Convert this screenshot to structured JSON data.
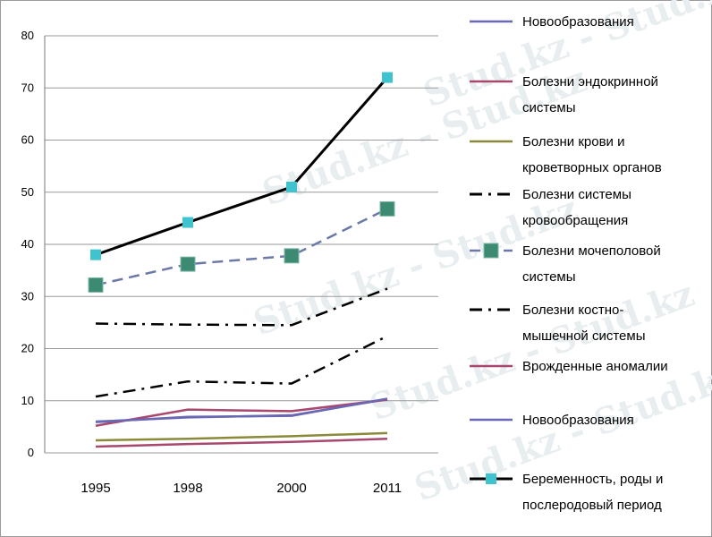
{
  "chart_data": {
    "type": "line",
    "x": [
      "1995",
      "1998",
      "2000",
      "2011"
    ],
    "ylim": [
      0,
      80
    ],
    "yticks": [
      "0",
      "10",
      "20",
      "30",
      "40",
      "50",
      "60",
      "70",
      "80"
    ],
    "grid": true,
    "legend_position": "right",
    "series": [
      {
        "name": "Новообразования",
        "values": [
          6,
          6.8,
          7.2,
          10.3
        ],
        "color": "#6a68b4",
        "style": "solid",
        "marker": "none"
      },
      {
        "name": "Болезни эндокринной системы",
        "values": [
          5.2,
          8.3,
          8,
          10.2
        ],
        "color": "#a8486e",
        "style": "solid",
        "marker": "none"
      },
      {
        "name": "Болезни крови и кроветворных органов",
        "values": [
          2.4,
          2.7,
          3.2,
          3.8
        ],
        "color": "#8a8a3a",
        "style": "solid",
        "marker": "none"
      },
      {
        "name": "Болезни системы кровообращения",
        "values": [
          24.8,
          24.6,
          24.5,
          31.5
        ],
        "color": "#000000",
        "style": "dashdot",
        "marker": "none"
      },
      {
        "name": "Болезни мочеполовой системы",
        "values": [
          32.2,
          36.2,
          37.8,
          46.8
        ],
        "color": "#6c79a8",
        "style": "dash",
        "marker": "square-large"
      },
      {
        "name": "Болезни костно- мышечной системы",
        "values": [
          10.8,
          13.7,
          13.3,
          22.4
        ],
        "color": "#000000",
        "style": "dashdot",
        "marker": "none"
      },
      {
        "name": "Врожденные аномалии",
        "values": [
          1.2,
          1.7,
          2.1,
          2.7
        ],
        "color": "#a8486e",
        "style": "solid",
        "marker": "none"
      },
      {
        "name": "Новообразования",
        "values": [
          5.9,
          6.9,
          7.1,
          10.4
        ],
        "color": "#6a68b4",
        "style": "solid",
        "marker": "none"
      },
      {
        "name": "Беременность, роды и послеродовый период",
        "values": [
          38,
          44.2,
          51,
          72
        ],
        "color": "#000000",
        "style": "solid",
        "marker": "square-cyan"
      }
    ],
    "legend": [
      {
        "lines": [
          "Новообразования"
        ]
      },
      {
        "lines": [
          "Болезни эндокринной",
          "системы"
        ]
      },
      {
        "lines": [
          "Болезни крови и",
          "кроветворных органов"
        ]
      },
      {
        "lines": [
          "Болезни системы",
          "кровообращения"
        ]
      },
      {
        "lines": [
          "Болезни мочеполовой",
          "системы"
        ]
      },
      {
        "lines": [
          "Болезни костно-",
          "мышечной системы"
        ]
      },
      {
        "lines": [
          "Врожденные аномалии"
        ]
      },
      {
        "lines": [
          "Новообразования"
        ]
      },
      {
        "lines": [
          "Беременность, роды и",
          "послеродовый период"
        ]
      }
    ],
    "watermark": "Stud.kz - Stud.kz"
  }
}
